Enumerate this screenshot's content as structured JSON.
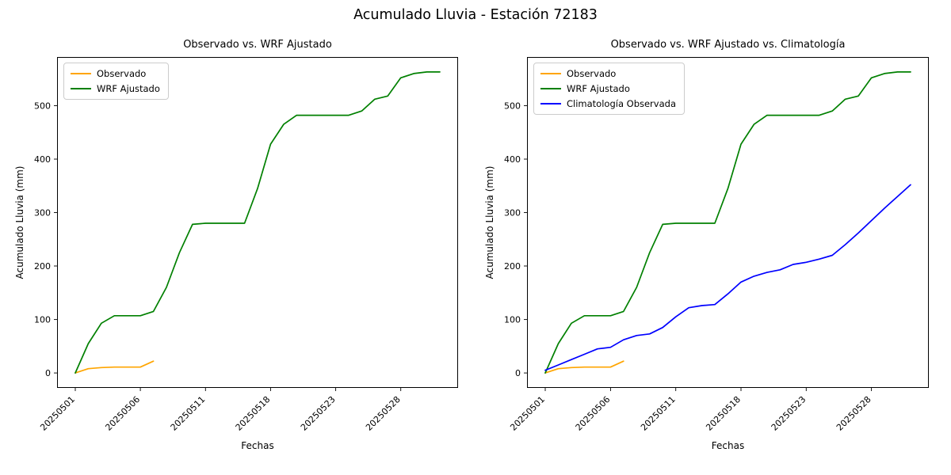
{
  "figure": {
    "title": "Acumulado Lluvia - Estación 72183",
    "background": "#ffffff"
  },
  "chart_data": [
    {
      "type": "line",
      "title": "Observado vs. WRF Ajustado",
      "xlabel": "Fechas",
      "ylabel": "Acumulado Lluvia (mm)",
      "legend_position": "upper left",
      "grid": false,
      "ylim": [
        -28,
        591
      ],
      "yticks": [
        0,
        100,
        200,
        300,
        400,
        500
      ],
      "xtick_indices": [
        0,
        5,
        10,
        15,
        20,
        25
      ],
      "xtick_labels": [
        "20250501",
        "20250506",
        "20250511",
        "20250518",
        "20250523",
        "20250528"
      ],
      "x": [
        "20250501",
        "20250502",
        "20250503",
        "20250504",
        "20250505",
        "20250506",
        "20250507",
        "20250508",
        "20250509",
        "20250510",
        "20250511",
        "20250514",
        "20250515",
        "20250516",
        "20250517",
        "20250518",
        "20250519",
        "20250520",
        "20250521",
        "20250522",
        "20250523",
        "20250524",
        "20250525",
        "20250526",
        "20250527",
        "20250528",
        "20250529",
        "20250530",
        "20250531"
      ],
      "series": [
        {
          "name": "Observado",
          "color": "#ffa500",
          "values": [
            0,
            8,
            10,
            11,
            11,
            11,
            22,
            null,
            null,
            null,
            null,
            null,
            null,
            null,
            null,
            null,
            null,
            null,
            null,
            null,
            null,
            null,
            null,
            null,
            null,
            null,
            null,
            null,
            null
          ]
        },
        {
          "name": "WRF Ajustado",
          "color": "#008000",
          "values": [
            0,
            55,
            93,
            107,
            107,
            107,
            115,
            160,
            225,
            278,
            280,
            280,
            280,
            280,
            345,
            428,
            465,
            482,
            482,
            482,
            482,
            482,
            490,
            512,
            518,
            552,
            560,
            563,
            563
          ]
        }
      ]
    },
    {
      "type": "line",
      "title": "Observado vs. WRF Ajustado vs. Climatología",
      "xlabel": "Fechas",
      "ylabel": "Acumulado Lluvia (mm)",
      "legend_position": "upper left",
      "grid": false,
      "ylim": [
        -28,
        591
      ],
      "yticks": [
        0,
        100,
        200,
        300,
        400,
        500
      ],
      "xtick_indices": [
        0,
        5,
        10,
        15,
        20,
        25
      ],
      "xtick_labels": [
        "20250501",
        "20250506",
        "20250511",
        "20250518",
        "20250523",
        "20250528"
      ],
      "x": [
        "20250501",
        "20250502",
        "20250503",
        "20250504",
        "20250505",
        "20250506",
        "20250507",
        "20250508",
        "20250509",
        "20250510",
        "20250511",
        "20250514",
        "20250515",
        "20250516",
        "20250517",
        "20250518",
        "20250519",
        "20250520",
        "20250521",
        "20250522",
        "20250523",
        "20250524",
        "20250525",
        "20250526",
        "20250527",
        "20250528",
        "20250529",
        "20250530",
        "20250531"
      ],
      "series": [
        {
          "name": "Observado",
          "color": "#ffa500",
          "values": [
            0,
            8,
            10,
            11,
            11,
            11,
            22,
            null,
            null,
            null,
            null,
            null,
            null,
            null,
            null,
            null,
            null,
            null,
            null,
            null,
            null,
            null,
            null,
            null,
            null,
            null,
            null,
            null,
            null
          ]
        },
        {
          "name": "WRF Ajustado",
          "color": "#008000",
          "values": [
            0,
            55,
            93,
            107,
            107,
            107,
            115,
            160,
            225,
            278,
            280,
            280,
            280,
            280,
            345,
            428,
            465,
            482,
            482,
            482,
            482,
            482,
            490,
            512,
            518,
            552,
            560,
            563,
            563
          ]
        },
        {
          "name": "Climatología Observada",
          "color": "#0000ff",
          "values": [
            5,
            15,
            25,
            35,
            45,
            48,
            62,
            70,
            73,
            85,
            105,
            122,
            126,
            128,
            148,
            170,
            181,
            188,
            193,
            203,
            207,
            213,
            220,
            240,
            262,
            285,
            308,
            330,
            352
          ]
        }
      ]
    }
  ]
}
